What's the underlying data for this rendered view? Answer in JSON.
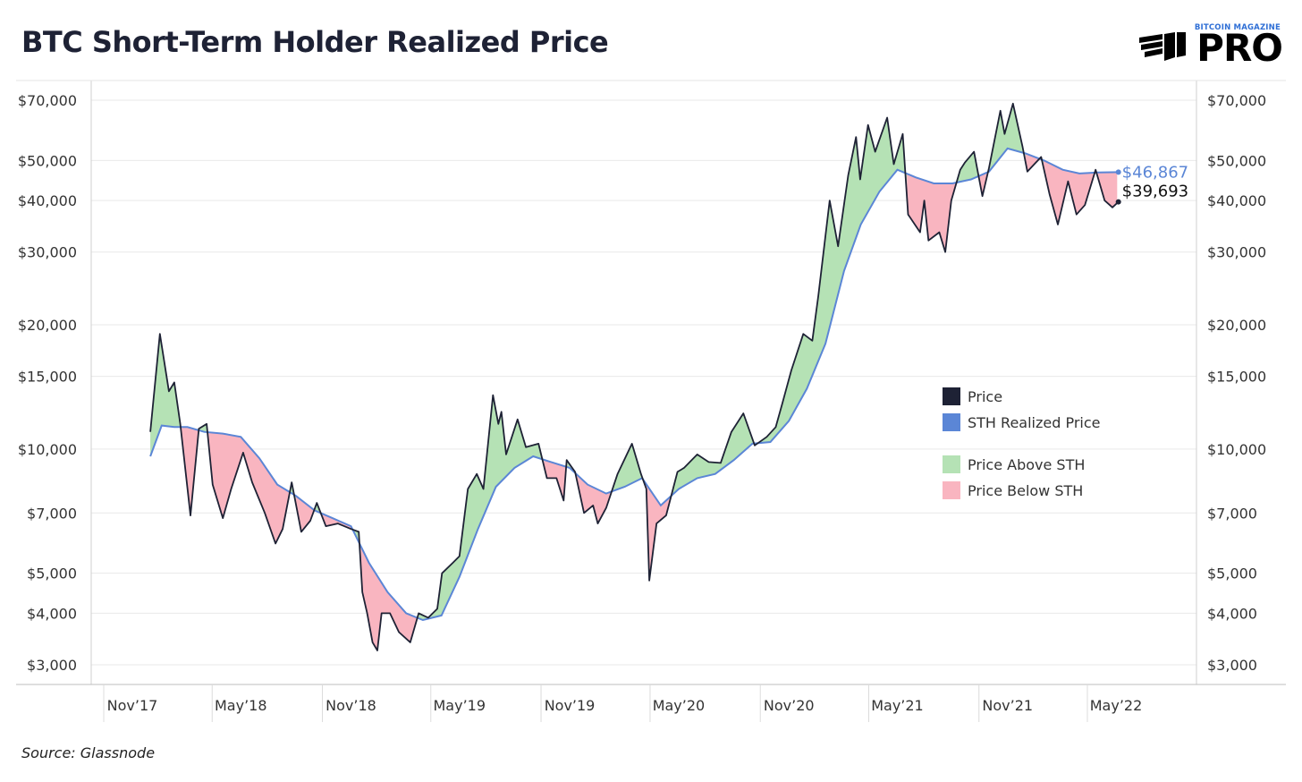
{
  "header": {
    "title": "BTC Short-Term Holder Realized Price"
  },
  "logo": {
    "top": "BITCOIN MAGAZINE",
    "main": "PRO"
  },
  "footer": {
    "source": "Source: Glassnode"
  },
  "colors": {
    "price": "#1e2235",
    "sth": "#5b86d6",
    "above": "#b5e2b5",
    "below": "#f9b5c0",
    "grid": "#e9e9e9"
  },
  "chart_data": {
    "type": "line",
    "title": "BTC Short-Term Holder Realized Price",
    "xlabel": "",
    "ylabel": "",
    "y_scale": "log",
    "ylim": [
      2800,
      78000
    ],
    "xlim": [
      "2017-11-01",
      "2022-06-05"
    ],
    "grid": true,
    "legend_position": "right",
    "y_ticks": [
      {
        "value": 70000,
        "label": "$70,000"
      },
      {
        "value": 50000,
        "label": "$50,000"
      },
      {
        "value": 40000,
        "label": "$40,000"
      },
      {
        "value": 30000,
        "label": "$30,000"
      },
      {
        "value": 20000,
        "label": "$20,000"
      },
      {
        "value": 15000,
        "label": "$15,000"
      },
      {
        "value": 10000,
        "label": "$10,000"
      },
      {
        "value": 7000,
        "label": "$7,000"
      },
      {
        "value": 5000,
        "label": "$5,000"
      },
      {
        "value": 4000,
        "label": "$4,000"
      },
      {
        "value": 3000,
        "label": "$3,000"
      }
    ],
    "x_ticks": [
      {
        "date": "2017-11-01",
        "label": "Nov’17"
      },
      {
        "date": "2018-05-01",
        "label": "May’18"
      },
      {
        "date": "2018-11-01",
        "label": "Nov’18"
      },
      {
        "date": "2019-05-01",
        "label": "May’19"
      },
      {
        "date": "2019-11-01",
        "label": "Nov’19"
      },
      {
        "date": "2020-05-01",
        "label": "May’20"
      },
      {
        "date": "2020-11-01",
        "label": "Nov’20"
      },
      {
        "date": "2021-05-01",
        "label": "May’21"
      },
      {
        "date": "2021-11-01",
        "label": "Nov’21"
      },
      {
        "date": "2022-05-01",
        "label": "May’22"
      }
    ],
    "legend": [
      {
        "label": "Price",
        "kind": "line"
      },
      {
        "label": "STH Realized Price",
        "kind": "line"
      },
      {
        "label": "Price Above STH",
        "kind": "fill"
      },
      {
        "label": "Price Below STH",
        "kind": "fill"
      }
    ],
    "end_labels": {
      "sth": "$46,867",
      "price": "$39,693"
    },
    "series": [
      {
        "name": "Price",
        "points": [
          [
            "2017-12-01",
            11000
          ],
          [
            "2017-12-17",
            19000
          ],
          [
            "2018-01-01",
            13800
          ],
          [
            "2018-01-10",
            14500
          ],
          [
            "2018-01-20",
            11500
          ],
          [
            "2018-02-06",
            6900
          ],
          [
            "2018-02-20",
            11200
          ],
          [
            "2018-03-05",
            11500
          ],
          [
            "2018-03-15",
            8200
          ],
          [
            "2018-04-01",
            6800
          ],
          [
            "2018-04-15",
            8000
          ],
          [
            "2018-05-05",
            9800
          ],
          [
            "2018-05-20",
            8300
          ],
          [
            "2018-06-10",
            7000
          ],
          [
            "2018-06-28",
            5900
          ],
          [
            "2018-07-10",
            6400
          ],
          [
            "2018-07-25",
            8300
          ],
          [
            "2018-08-10",
            6300
          ],
          [
            "2018-08-25",
            6700
          ],
          [
            "2018-09-05",
            7400
          ],
          [
            "2018-09-20",
            6500
          ],
          [
            "2018-10-10",
            6600
          ],
          [
            "2018-11-01",
            6400
          ],
          [
            "2018-11-14",
            6300
          ],
          [
            "2018-11-20",
            4500
          ],
          [
            "2018-11-28",
            4000
          ],
          [
            "2018-12-07",
            3400
          ],
          [
            "2018-12-15",
            3250
          ],
          [
            "2018-12-22",
            4000
          ],
          [
            "2019-01-05",
            4000
          ],
          [
            "2019-01-20",
            3600
          ],
          [
            "2019-02-08",
            3400
          ],
          [
            "2019-02-22",
            4000
          ],
          [
            "2019-03-10",
            3900
          ],
          [
            "2019-03-25",
            4100
          ],
          [
            "2019-04-02",
            5000
          ],
          [
            "2019-04-20",
            5300
          ],
          [
            "2019-05-01",
            5500
          ],
          [
            "2019-05-15",
            8000
          ],
          [
            "2019-05-30",
            8700
          ],
          [
            "2019-06-10",
            8000
          ],
          [
            "2019-06-26",
            13500
          ],
          [
            "2019-07-05",
            11500
          ],
          [
            "2019-07-10",
            12300
          ],
          [
            "2019-07-18",
            9700
          ],
          [
            "2019-08-06",
            11800
          ],
          [
            "2019-08-20",
            10100
          ],
          [
            "2019-09-10",
            10300
          ],
          [
            "2019-09-24",
            8500
          ],
          [
            "2019-10-10",
            8500
          ],
          [
            "2019-10-22",
            7500
          ],
          [
            "2019-10-27",
            9400
          ],
          [
            "2019-11-10",
            8800
          ],
          [
            "2019-11-25",
            7000
          ],
          [
            "2019-12-10",
            7300
          ],
          [
            "2019-12-18",
            6600
          ],
          [
            "2020-01-01",
            7200
          ],
          [
            "2020-01-20",
            8700
          ],
          [
            "2020-02-13",
            10300
          ],
          [
            "2020-02-28",
            8700
          ],
          [
            "2020-03-08",
            8000
          ],
          [
            "2020-03-13",
            4800
          ],
          [
            "2020-03-25",
            6600
          ],
          [
            "2020-04-10",
            6900
          ],
          [
            "2020-04-29",
            8800
          ],
          [
            "2020-05-10",
            9000
          ],
          [
            "2020-06-01",
            9700
          ],
          [
            "2020-06-20",
            9300
          ],
          [
            "2020-07-10",
            9250
          ],
          [
            "2020-07-28",
            11000
          ],
          [
            "2020-08-17",
            12200
          ],
          [
            "2020-09-05",
            10200
          ],
          [
            "2020-09-25",
            10700
          ],
          [
            "2020-10-10",
            11300
          ],
          [
            "2020-10-21",
            12900
          ],
          [
            "2020-11-05",
            15500
          ],
          [
            "2020-11-25",
            19000
          ],
          [
            "2020-12-10",
            18300
          ],
          [
            "2020-12-20",
            23500
          ],
          [
            "2021-01-08",
            40000
          ],
          [
            "2021-01-22",
            31000
          ],
          [
            "2021-02-08",
            46000
          ],
          [
            "2021-02-21",
            57000
          ],
          [
            "2021-02-28",
            45000
          ],
          [
            "2021-03-13",
            61000
          ],
          [
            "2021-03-25",
            52500
          ],
          [
            "2021-04-14",
            63500
          ],
          [
            "2021-04-25",
            49000
          ],
          [
            "2021-05-10",
            58000
          ],
          [
            "2021-05-19",
            37000
          ],
          [
            "2021-06-08",
            33500
          ],
          [
            "2021-06-15",
            40000
          ],
          [
            "2021-06-22",
            32000
          ],
          [
            "2021-07-10",
            33500
          ],
          [
            "2021-07-20",
            30000
          ],
          [
            "2021-07-30",
            40000
          ],
          [
            "2021-08-14",
            47500
          ],
          [
            "2021-08-22",
            49500
          ],
          [
            "2021-09-06",
            52500
          ],
          [
            "2021-09-20",
            41000
          ],
          [
            "2021-10-01",
            48000
          ],
          [
            "2021-10-20",
            66000
          ],
          [
            "2021-10-27",
            58000
          ],
          [
            "2021-11-10",
            68700
          ],
          [
            "2021-11-26",
            54000
          ],
          [
            "2021-12-04",
            47000
          ],
          [
            "2021-12-27",
            51000
          ],
          [
            "2022-01-10",
            41500
          ],
          [
            "2022-01-24",
            35000
          ],
          [
            "2022-02-10",
            44500
          ],
          [
            "2022-02-24",
            37000
          ],
          [
            "2022-03-10",
            39000
          ],
          [
            "2022-03-28",
            47500
          ],
          [
            "2022-04-12",
            40000
          ],
          [
            "2022-04-25",
            38500
          ],
          [
            "2022-05-05",
            39693
          ]
        ]
      },
      {
        "name": "STH Realized Price",
        "points": [
          [
            "2017-12-01",
            9600
          ],
          [
            "2017-12-20",
            11400
          ],
          [
            "2018-01-10",
            11300
          ],
          [
            "2018-02-01",
            11300
          ],
          [
            "2018-03-01",
            11000
          ],
          [
            "2018-04-01",
            10900
          ],
          [
            "2018-05-01",
            10700
          ],
          [
            "2018-06-01",
            9500
          ],
          [
            "2018-07-01",
            8200
          ],
          [
            "2018-08-01",
            7700
          ],
          [
            "2018-09-01",
            7100
          ],
          [
            "2018-10-01",
            6800
          ],
          [
            "2018-11-01",
            6500
          ],
          [
            "2018-12-01",
            5300
          ],
          [
            "2019-01-01",
            4500
          ],
          [
            "2019-02-01",
            4000
          ],
          [
            "2019-03-01",
            3850
          ],
          [
            "2019-04-01",
            3950
          ],
          [
            "2019-05-01",
            4900
          ],
          [
            "2019-06-01",
            6400
          ],
          [
            "2019-07-01",
            8100
          ],
          [
            "2019-08-01",
            9000
          ],
          [
            "2019-09-01",
            9600
          ],
          [
            "2019-10-01",
            9300
          ],
          [
            "2019-11-01",
            9000
          ],
          [
            "2019-12-01",
            8200
          ],
          [
            "2020-01-01",
            7800
          ],
          [
            "2020-02-01",
            8100
          ],
          [
            "2020-03-01",
            8500
          ],
          [
            "2020-04-01",
            7300
          ],
          [
            "2020-05-01",
            8000
          ],
          [
            "2020-06-01",
            8500
          ],
          [
            "2020-07-01",
            8700
          ],
          [
            "2020-08-01",
            9400
          ],
          [
            "2020-09-01",
            10300
          ],
          [
            "2020-10-01",
            10400
          ],
          [
            "2020-11-01",
            11700
          ],
          [
            "2020-12-01",
            14000
          ],
          [
            "2021-01-01",
            18000
          ],
          [
            "2021-02-01",
            27000
          ],
          [
            "2021-03-01",
            35000
          ],
          [
            "2021-04-01",
            42000
          ],
          [
            "2021-05-01",
            47500
          ],
          [
            "2021-06-01",
            45500
          ],
          [
            "2021-07-01",
            44000
          ],
          [
            "2021-08-01",
            44000
          ],
          [
            "2021-09-01",
            45000
          ],
          [
            "2021-10-01",
            47000
          ],
          [
            "2021-11-01",
            53500
          ],
          [
            "2021-12-01",
            52000
          ],
          [
            "2022-01-01",
            50000
          ],
          [
            "2022-02-01",
            47500
          ],
          [
            "2022-03-01",
            46500
          ],
          [
            "2022-04-01",
            46800
          ],
          [
            "2022-05-05",
            46867
          ]
        ]
      }
    ]
  }
}
